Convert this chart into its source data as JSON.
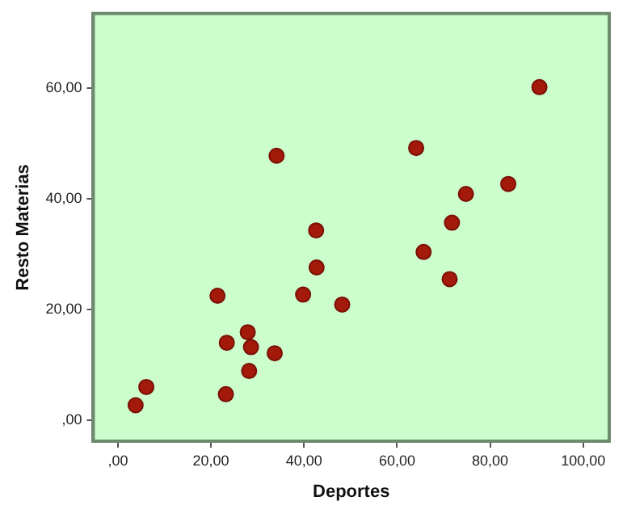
{
  "chart_data": {
    "type": "scatter",
    "xlabel": "Deportes",
    "ylabel": "Resto Materias",
    "x": [
      90.6,
      34.1,
      64.1,
      83.9,
      74.8,
      71.8,
      42.6,
      65.7,
      42.7,
      21.4,
      39.8,
      48.2,
      71.3,
      27.9,
      23.4,
      28.6,
      33.7,
      28.2,
      6.1,
      3.8,
      23.2
    ],
    "series": [
      {
        "color": "#a31a0a",
        "values": [
          60.2,
          47.8,
          49.2,
          42.7,
          40.9,
          35.7,
          34.3,
          30.4,
          27.6,
          22.5,
          22.7,
          20.9,
          25.5,
          15.9,
          14.0,
          13.2,
          12.1,
          8.9,
          6.0,
          2.7,
          4.7
        ]
      }
    ],
    "xlim": [
      -5.3,
      105.6
    ],
    "ylim": [
      -3.8,
      73.5
    ],
    "xticks": [
      {
        "value": 0,
        "label": ",00"
      },
      {
        "value": 20,
        "label": "20,00"
      },
      {
        "value": 40,
        "label": "40,00"
      },
      {
        "value": 60,
        "label": "60,00"
      },
      {
        "value": 80,
        "label": "80,00"
      },
      {
        "value": 100,
        "label": "100,00"
      }
    ],
    "yticks": [
      {
        "value": 0,
        "label": ",00"
      },
      {
        "value": 20,
        "label": "20,00"
      },
      {
        "value": 40,
        "label": "40,00"
      },
      {
        "value": 60,
        "label": "60,00"
      }
    ],
    "grid": false,
    "legend": false,
    "marker": "circle"
  }
}
